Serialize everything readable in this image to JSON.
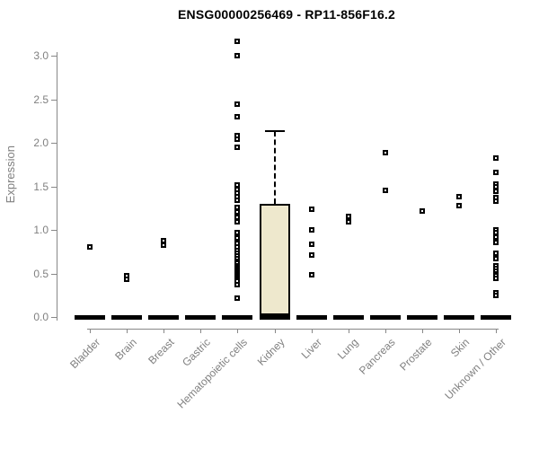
{
  "title": "ENSG00000256469 - RP11-856F16.2",
  "y_axis": {
    "label": "Expression",
    "tick_labels": [
      "0.0",
      "0.5",
      "1.0",
      "1.5",
      "2.0",
      "2.5",
      "3.0"
    ]
  },
  "colors": {
    "title": "#000000",
    "axis_line": "#888888",
    "tick_label": "#808080",
    "box_fill": "#EEE8CD",
    "box_border": "#000000",
    "outlier": "#000000",
    "baseline_bar": "#000000"
  },
  "chart_data": {
    "type": "boxplot",
    "title": "ENSG00000256469 - RP11-856F16.2",
    "xlabel": "",
    "ylabel": "Expression",
    "ylim": [
      0,
      3.2
    ],
    "yticks": [
      0,
      0.5,
      1,
      1.5,
      2,
      2.5,
      3
    ],
    "grid": false,
    "legend": null,
    "categories": [
      "Bladder",
      "Brain",
      "Breast",
      "Gastric",
      "Hematopoietic cells",
      "Kidney",
      "Liver",
      "Lung",
      "Pancreas",
      "Prostate",
      "Skin",
      "Unknown / Other"
    ],
    "series": [
      {
        "name": "Bladder",
        "q1": 0,
        "median": 0,
        "q3": 0,
        "whisker_low": 0,
        "whisker_high": 0,
        "outliers": [
          0.8
        ]
      },
      {
        "name": "Brain",
        "q1": 0,
        "median": 0,
        "q3": 0,
        "whisker_low": 0,
        "whisker_high": 0,
        "outliers": [
          0.47,
          0.43
        ]
      },
      {
        "name": "Breast",
        "q1": 0,
        "median": 0,
        "q3": 0,
        "whisker_low": 0,
        "whisker_high": 0,
        "outliers": [
          0.88,
          0.82
        ]
      },
      {
        "name": "Gastric",
        "q1": 0,
        "median": 0,
        "q3": 0,
        "whisker_low": 0,
        "whisker_high": 0,
        "outliers": []
      },
      {
        "name": "Hematopoietic cells",
        "q1": 0,
        "median": 0,
        "q3": 0,
        "whisker_low": 0,
        "whisker_high": 0,
        "outliers": [
          3.16,
          3.0,
          2.44,
          2.3,
          2.08,
          2.04,
          1.95,
          1.52,
          1.46,
          1.42,
          1.38,
          1.34,
          1.26,
          1.21,
          1.14,
          1.09,
          0.97,
          0.91,
          0.85,
          0.8,
          0.76,
          0.73,
          0.7,
          0.67,
          0.64,
          0.62,
          0.59,
          0.57,
          0.55,
          0.53,
          0.51,
          0.49,
          0.47,
          0.45,
          0.43,
          0.41,
          0.37,
          0.22
        ]
      },
      {
        "name": "Kidney",
        "q1": 0.02,
        "median": 0.02,
        "q3": 1.3,
        "whisker_low": 0,
        "whisker_high": 2.13,
        "outliers": []
      },
      {
        "name": "Liver",
        "q1": 0,
        "median": 0,
        "q3": 0,
        "whisker_low": 0,
        "whisker_high": 0,
        "outliers": [
          1.24,
          1.0,
          0.84,
          0.71,
          0.48
        ]
      },
      {
        "name": "Lung",
        "q1": 0,
        "median": 0,
        "q3": 0,
        "whisker_low": 0,
        "whisker_high": 0,
        "outliers": [
          1.15,
          1.09
        ]
      },
      {
        "name": "Pancreas",
        "q1": 0,
        "median": 0,
        "q3": 0,
        "whisker_low": 0,
        "whisker_high": 0,
        "outliers": [
          1.89,
          1.45
        ]
      },
      {
        "name": "Prostate",
        "q1": 0,
        "median": 0,
        "q3": 0,
        "whisker_low": 0,
        "whisker_high": 0,
        "outliers": [
          1.22
        ]
      },
      {
        "name": "Skin",
        "q1": 0,
        "median": 0,
        "q3": 0,
        "whisker_low": 0,
        "whisker_high": 0,
        "outliers": [
          1.38,
          1.28
        ]
      },
      {
        "name": "Unknown / Other",
        "q1": 0,
        "median": 0,
        "q3": 0,
        "whisker_low": 0,
        "whisker_high": 0,
        "outliers": [
          1.82,
          1.66,
          1.53,
          1.5,
          1.44,
          1.37,
          1.33,
          1.0,
          0.97,
          0.92,
          0.86,
          0.73,
          0.67,
          0.59,
          0.56,
          0.53,
          0.5,
          0.47,
          0.44,
          0.28,
          0.25
        ]
      }
    ]
  }
}
